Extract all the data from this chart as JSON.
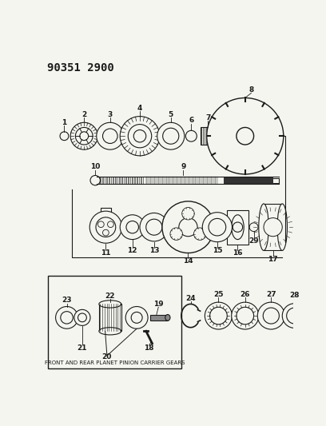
{
  "title": "90351 2900",
  "bg_color": "#f5f5f0",
  "line_color": "#1a1a1a",
  "box_bottom_label": "FRONT AND REAR PLANET PINION CARRIER GEARS"
}
